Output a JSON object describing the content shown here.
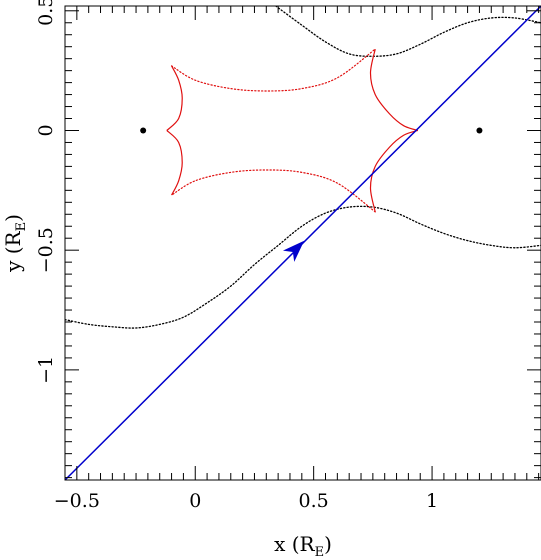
{
  "chart_data": {
    "type": "line",
    "xlabel": "x (R",
    "xlabel_sub": "E",
    "xlabel_close": ")",
    "ylabel": "y (R",
    "ylabel_sub": "E",
    "ylabel_close": ")",
    "xlim": [
      -0.55,
      1.46
    ],
    "ylim": [
      -1.46,
      0.52
    ],
    "x_ticks": [
      {
        "value": -0.5,
        "label": "−0.5"
      },
      {
        "value": 0,
        "label": "0"
      },
      {
        "value": 0.5,
        "label": "0.5"
      },
      {
        "value": 1,
        "label": "1"
      }
    ],
    "y_ticks": [
      {
        "value": 0.5,
        "label": "0.5"
      },
      {
        "value": 0,
        "label": "0"
      },
      {
        "value": -0.5,
        "label": "−0.5"
      },
      {
        "value": -1,
        "label": "−1"
      }
    ],
    "lens_points": [
      {
        "x": -0.22,
        "y": 0.0
      },
      {
        "x": 1.2,
        "y": 0.0
      }
    ],
    "trajectory": {
      "color": "#0000cc",
      "points": [
        [
          -0.55,
          -1.46
        ],
        [
          1.46,
          0.52
        ]
      ],
      "arrow_at": [
        0.43,
        -0.49
      ]
    },
    "caustic": {
      "color": "#e01010",
      "cusps": [
        [
          -0.12,
          0.0
        ],
        [
          -0.1,
          0.27
        ],
        [
          0.76,
          0.34
        ],
        [
          0.94,
          0.0
        ],
        [
          0.76,
          -0.34
        ],
        [
          -0.1,
          -0.27
        ]
      ],
      "segments": [
        {
          "style": "solid",
          "points": [
            [
              -0.12,
              0.0
            ],
            [
              -0.07,
              0.05
            ],
            [
              -0.055,
              0.135
            ],
            [
              -0.07,
              0.21
            ],
            [
              -0.1,
              0.27
            ]
          ]
        },
        {
          "style": "dotted",
          "points": [
            [
              -0.1,
              0.27
            ],
            [
              0.0,
              0.21
            ],
            [
              0.15,
              0.175
            ],
            [
              0.3,
              0.165
            ],
            [
              0.45,
              0.175
            ],
            [
              0.6,
              0.22
            ],
            [
              0.76,
              0.34
            ]
          ]
        },
        {
          "style": "solid",
          "points": [
            [
              0.76,
              0.34
            ],
            [
              0.74,
              0.24
            ],
            [
              0.76,
              0.15
            ],
            [
              0.82,
              0.07
            ],
            [
              0.88,
              0.02
            ],
            [
              0.94,
              0.0
            ]
          ]
        },
        {
          "style": "solid",
          "points": [
            [
              0.94,
              0.0
            ],
            [
              0.88,
              -0.02
            ],
            [
              0.82,
              -0.07
            ],
            [
              0.76,
              -0.15
            ],
            [
              0.74,
              -0.24
            ],
            [
              0.76,
              -0.34
            ]
          ]
        },
        {
          "style": "dotted",
          "points": [
            [
              0.76,
              -0.34
            ],
            [
              0.6,
              -0.22
            ],
            [
              0.45,
              -0.175
            ],
            [
              0.3,
              -0.165
            ],
            [
              0.15,
              -0.175
            ],
            [
              0.0,
              -0.21
            ],
            [
              -0.1,
              -0.27
            ]
          ]
        },
        {
          "style": "solid",
          "points": [
            [
              -0.1,
              -0.27
            ],
            [
              -0.07,
              -0.21
            ],
            [
              -0.055,
              -0.135
            ],
            [
              -0.07,
              -0.05
            ],
            [
              -0.12,
              0.0
            ]
          ]
        }
      ]
    },
    "critical_curves": [
      {
        "style": "dotted",
        "color": "#000000",
        "points": [
          [
            0.34,
            0.52
          ],
          [
            0.45,
            0.44
          ],
          [
            0.55,
            0.37
          ],
          [
            0.65,
            0.32
          ],
          [
            0.75,
            0.31
          ],
          [
            0.85,
            0.32
          ],
          [
            0.95,
            0.36
          ],
          [
            1.05,
            0.41
          ],
          [
            1.15,
            0.45
          ],
          [
            1.25,
            0.47
          ],
          [
            1.35,
            0.47
          ],
          [
            1.46,
            0.45
          ]
        ]
      },
      {
        "style": "dotted",
        "color": "#000000",
        "points": [
          [
            -0.55,
            -0.79
          ],
          [
            -0.45,
            -0.81
          ],
          [
            -0.35,
            -0.82
          ],
          [
            -0.25,
            -0.825
          ],
          [
            -0.15,
            -0.81
          ],
          [
            -0.05,
            -0.78
          ],
          [
            0.05,
            -0.72
          ],
          [
            0.15,
            -0.65
          ],
          [
            0.25,
            -0.56
          ],
          [
            0.35,
            -0.48
          ],
          [
            0.45,
            -0.4
          ],
          [
            0.55,
            -0.345
          ],
          [
            0.65,
            -0.32
          ],
          [
            0.75,
            -0.32
          ],
          [
            0.85,
            -0.345
          ],
          [
            0.95,
            -0.39
          ],
          [
            1.05,
            -0.43
          ],
          [
            1.15,
            -0.46
          ],
          [
            1.25,
            -0.48
          ],
          [
            1.35,
            -0.49
          ],
          [
            1.46,
            -0.48
          ]
        ]
      }
    ]
  }
}
